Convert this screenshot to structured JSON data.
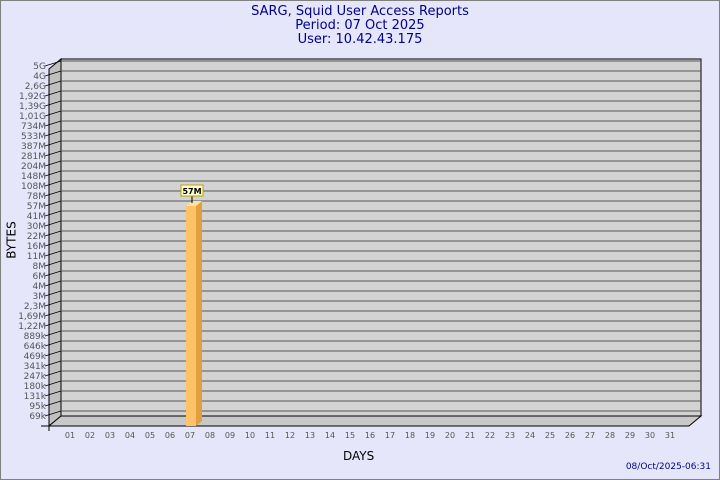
{
  "header": {
    "title": "SARG, Squid User Access Reports",
    "period": "Period: 07 Oct 2025",
    "user": "User: 10.42.43.175"
  },
  "timestamp": "08/Oct/2025-06:31",
  "chart_data": {
    "type": "bar",
    "title": "SARG, Squid User Access Reports",
    "xlabel": "DAYS",
    "ylabel": "BYTES",
    "y_scale": "log",
    "y_tick_labels": [
      "5G",
      "4G",
      "2,6G",
      "1,92G",
      "1,39G",
      "1,01G",
      "734M",
      "533M",
      "387M",
      "281M",
      "204M",
      "148M",
      "108M",
      "78M",
      "57M",
      "41M",
      "30M",
      "22M",
      "16M",
      "11M",
      "8M",
      "6M",
      "4M",
      "3M",
      "2,3M",
      "1,69M",
      "1,22M",
      "889k",
      "646k",
      "469k",
      "341k",
      "247k",
      "180k",
      "131k",
      "95k",
      "69k"
    ],
    "categories": [
      "01",
      "02",
      "03",
      "04",
      "05",
      "06",
      "07",
      "08",
      "09",
      "10",
      "11",
      "12",
      "13",
      "14",
      "15",
      "16",
      "17",
      "18",
      "19",
      "20",
      "21",
      "22",
      "23",
      "24",
      "25",
      "26",
      "27",
      "28",
      "29",
      "30",
      "31"
    ],
    "values": [
      null,
      null,
      null,
      null,
      null,
      null,
      "57M",
      null,
      null,
      null,
      null,
      null,
      null,
      null,
      null,
      null,
      null,
      null,
      null,
      null,
      null,
      null,
      null,
      null,
      null,
      null,
      null,
      null,
      null,
      null,
      null
    ],
    "data_labels": {
      "07": "57M"
    },
    "grid": true,
    "colors": {
      "bar": "#ffc266",
      "bar_side": "#e0a040",
      "wall": "#d3d3d3",
      "title": "#00008b"
    }
  }
}
